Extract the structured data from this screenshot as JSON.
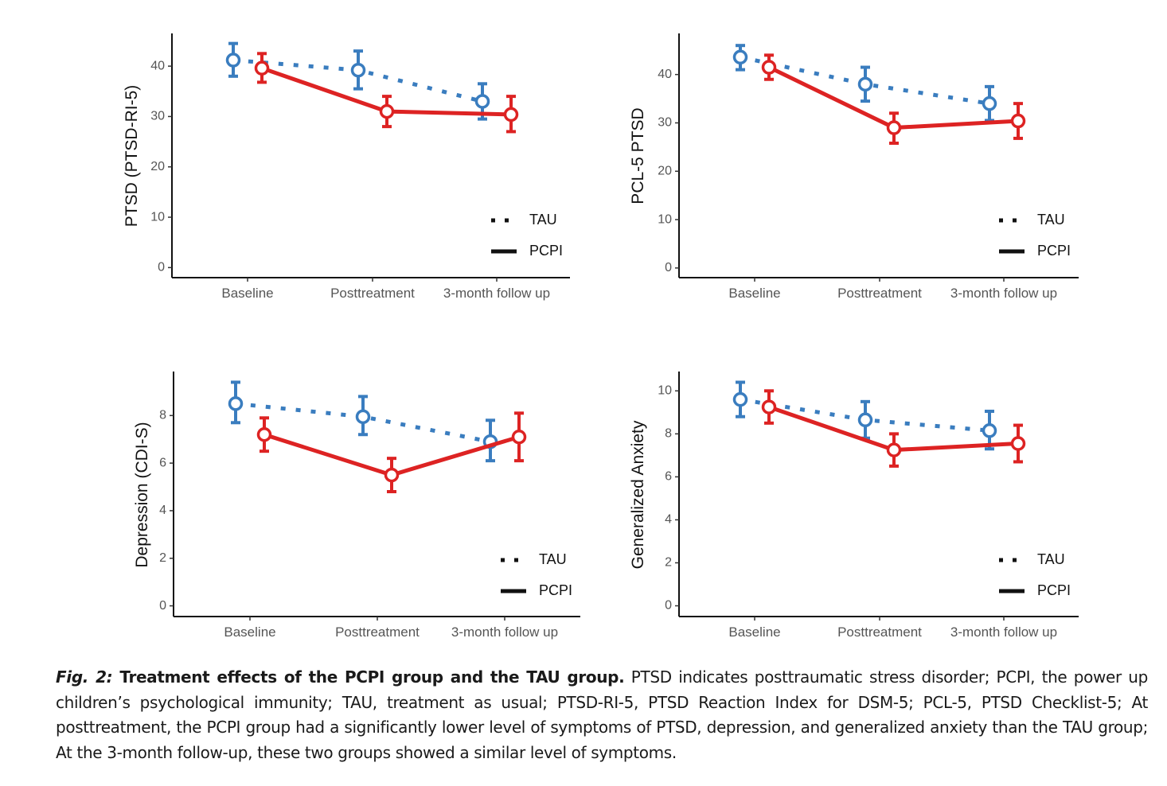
{
  "colors": {
    "tau": "#3a7dbf",
    "pcpi": "#dd2323",
    "axis": "#111111"
  },
  "legend": {
    "tau": "TAU",
    "pcpi": "PCPI"
  },
  "chart_data": [
    {
      "type": "line",
      "ylabel": "PTSD (PTSD-RI-5)",
      "categories": [
        "Baseline",
        "Posttreatment",
        "3-month follow up"
      ],
      "yticks": [
        0,
        10,
        20,
        30,
        40
      ],
      "ylim": [
        -2,
        46.5
      ],
      "series": [
        {
          "name": "TAU",
          "style": "dotted",
          "values": [
            41.2,
            39.2,
            33.0
          ],
          "lower": [
            38.0,
            35.5,
            29.5
          ],
          "upper": [
            44.5,
            43.0,
            36.5
          ]
        },
        {
          "name": "PCPI",
          "style": "solid",
          "values": [
            39.6,
            31.0,
            30.4
          ],
          "lower": [
            36.8,
            28.0,
            27.0
          ],
          "upper": [
            42.5,
            34.0,
            34.0
          ]
        }
      ]
    },
    {
      "type": "line",
      "ylabel": "PCL-5 PTSD",
      "categories": [
        "Baseline",
        "Posttreatment",
        "3-month follow up"
      ],
      "yticks": [
        0,
        10,
        20,
        30,
        40
      ],
      "ylim": [
        -2,
        48.5
      ],
      "series": [
        {
          "name": "TAU",
          "style": "dotted",
          "values": [
            43.6,
            38.0,
            34.0
          ],
          "lower": [
            41.0,
            34.5,
            30.5
          ],
          "upper": [
            46.0,
            41.5,
            37.5
          ]
        },
        {
          "name": "PCPI",
          "style": "solid",
          "values": [
            41.5,
            29.0,
            30.4
          ],
          "lower": [
            39.0,
            25.8,
            26.8
          ],
          "upper": [
            44.0,
            32.0,
            34.0
          ]
        }
      ]
    },
    {
      "type": "line",
      "ylabel": "Depression (CDI-S)",
      "categories": [
        "Baseline",
        "Posttreatment",
        "3-month follow up"
      ],
      "yticks": [
        0,
        2,
        4,
        6,
        8
      ],
      "ylim": [
        -0.45,
        9.85
      ],
      "series": [
        {
          "name": "TAU",
          "style": "dotted",
          "values": [
            8.5,
            7.95,
            6.9
          ],
          "lower": [
            7.7,
            7.2,
            6.1
          ],
          "upper": [
            9.4,
            8.8,
            7.8
          ]
        },
        {
          "name": "PCPI",
          "style": "solid",
          "values": [
            7.2,
            5.5,
            7.1
          ],
          "lower": [
            6.5,
            4.8,
            6.1
          ],
          "upper": [
            7.9,
            6.2,
            8.1
          ]
        }
      ]
    },
    {
      "type": "line",
      "ylabel": "Generalized Anxiety",
      "categories": [
        "Baseline",
        "Posttreatment",
        "3-month follow up"
      ],
      "yticks": [
        0,
        2,
        4,
        6,
        8,
        10
      ],
      "ylim": [
        -0.5,
        10.9
      ],
      "series": [
        {
          "name": "TAU",
          "style": "dotted",
          "values": [
            9.6,
            8.65,
            8.15
          ],
          "lower": [
            8.8,
            7.8,
            7.3
          ],
          "upper": [
            10.4,
            9.5,
            9.05
          ]
        },
        {
          "name": "PCPI",
          "style": "solid",
          "values": [
            9.25,
            7.25,
            7.55
          ],
          "lower": [
            8.5,
            6.5,
            6.7
          ],
          "upper": [
            10.0,
            8.0,
            8.4
          ]
        }
      ]
    }
  ],
  "caption": {
    "fig_label": "Fig. 2:",
    "title": "Treatment effects of the PCPI group and the TAU group.",
    "text": "PTSD indicates posttraumatic stress disorder; PCPI, the power up children’s psychological immunity; TAU, treatment as usual; PTSD-RI-5, PTSD Reaction Index for DSM-5; PCL-5, PTSD Checklist-5; At posttreatment, the PCPI group had a significantly lower level of symptoms of PTSD, depression, and generalized anxiety than the TAU group; At the 3-month follow-up, these two groups showed a similar level of symptoms."
  }
}
